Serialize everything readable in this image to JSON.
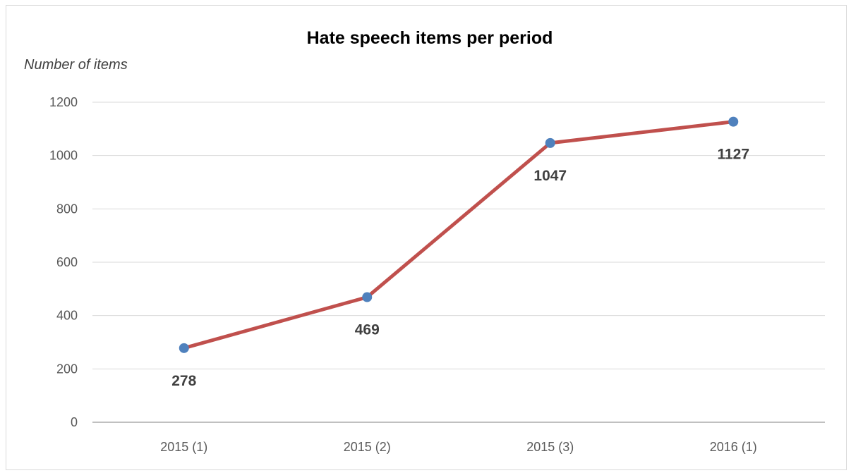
{
  "chart_data": {
    "type": "line",
    "title": "Hate speech items per period",
    "ylabel": "Number of items",
    "xlabel": "",
    "categories": [
      "2015 (1)",
      "2015 (2)",
      "2015 (3)",
      "2016 (1)"
    ],
    "series": [
      {
        "values": [
          278,
          469,
          1047,
          1127
        ],
        "data_labels": [
          "278",
          "469",
          "1047",
          "1127"
        ],
        "line_color": "#c0504d",
        "marker_color": "#4f81bd"
      }
    ],
    "ylim": [
      0,
      1200
    ],
    "yticks": [
      "0",
      "200",
      "400",
      "600",
      "800",
      "1000",
      "1200"
    ],
    "grid": true,
    "legend": "none",
    "gridline_color": "#d9d9d9",
    "axis_color": "#808080"
  }
}
